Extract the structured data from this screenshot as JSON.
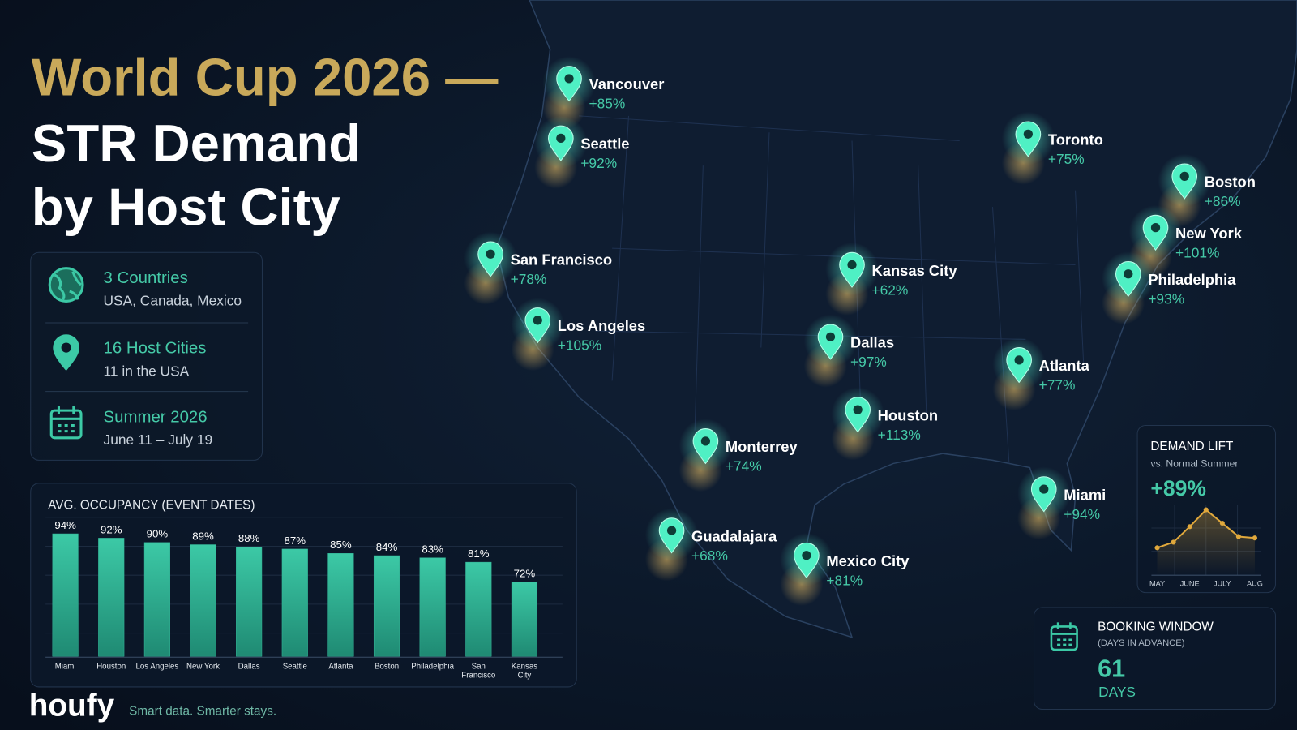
{
  "header": {
    "title_lines": [
      "World Cup 2026 —",
      "STR Demand",
      "by Host City"
    ]
  },
  "stats": [
    {
      "title": "3 Countries",
      "detail": "USA, Canada, Mexico"
    },
    {
      "title": "16 Host Cities",
      "detail": "11 in the USA"
    },
    {
      "title": "Summer 2026",
      "detail": "June 11 – July 19"
    }
  ],
  "cities": [
    {
      "name": "Vancouver",
      "lift": "+85%"
    },
    {
      "name": "Seattle",
      "lift": "+92%"
    },
    {
      "name": "San Francisco",
      "lift": "+78%"
    },
    {
      "name": "Los Angeles",
      "lift": "+105%"
    },
    {
      "name": "Kansas City",
      "lift": "+62%"
    },
    {
      "name": "Dallas",
      "lift": "+97%"
    },
    {
      "name": "Houston",
      "lift": "+113%"
    },
    {
      "name": "Monterrey",
      "lift": "+74%"
    },
    {
      "name": "Guadalajara",
      "lift": "+68%"
    },
    {
      "name": "Mexico City",
      "lift": "+81%"
    },
    {
      "name": "Toronto",
      "lift": "+75%"
    },
    {
      "name": "Boston",
      "lift": "+86%"
    },
    {
      "name": "New York",
      "lift": "+101%"
    },
    {
      "name": "Philadelphia",
      "lift": "+93%"
    },
    {
      "name": "Atlanta",
      "lift": "+77%"
    },
    {
      "name": "Miami",
      "lift": "+94%"
    }
  ],
  "chart_data": [
    {
      "type": "bar",
      "title": "AVG. OCCUPANCY (EVENT DATES)",
      "categories": [
        "Miami",
        "Houston",
        "Los Angeles",
        "New York",
        "Dallas",
        "Seattle",
        "Atlanta",
        "Boston",
        "Philadelphia",
        "San Francisco",
        "Kansas City"
      ],
      "values": [
        94,
        92,
        90,
        89,
        88,
        87,
        85,
        84,
        83,
        81,
        72
      ],
      "value_labels": [
        "94%",
        "92%",
        "90%",
        "89%",
        "88%",
        "87%",
        "85%",
        "84%",
        "83%",
        "81%",
        "72%"
      ],
      "color": "#35b99a",
      "ylim": [
        38,
        100
      ]
    },
    {
      "type": "line",
      "title": "DEMAND LIFT",
      "subtitle": "vs. Normal Summer",
      "annotation": "+89%",
      "categories": [
        "MAY",
        null,
        "JUNE",
        null,
        "JULY",
        null,
        "AUG"
      ],
      "values": [
        39,
        47,
        69,
        93,
        74,
        55,
        53
      ],
      "color": "#e0a83c",
      "ylim": [
        0,
        100
      ]
    }
  ],
  "booking": {
    "title": "BOOKING WINDOW",
    "subtitle": "(DAYS IN ADVANCE)",
    "value": "61",
    "unit": "DAYS"
  },
  "brand": {
    "name": "houfy",
    "tagline": "Smart data. Smarter stays."
  }
}
